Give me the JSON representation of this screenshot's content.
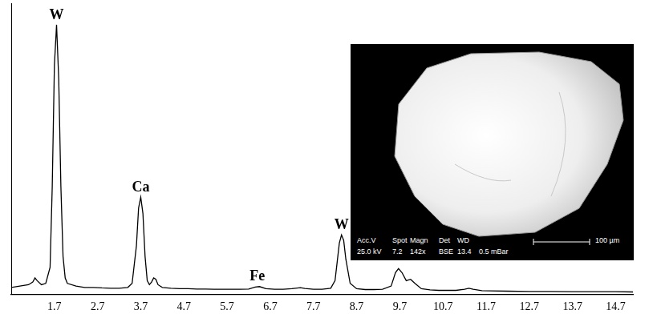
{
  "chart_data": {
    "type": "line",
    "x": [
      0.7,
      0.9,
      1.1,
      1.2,
      1.25,
      1.3,
      1.4,
      1.5,
      1.6,
      1.65,
      1.7,
      1.75,
      1.8,
      1.85,
      1.9,
      1.95,
      2.0,
      2.2,
      2.4,
      2.6,
      2.8,
      3.0,
      3.2,
      3.4,
      3.5,
      3.6,
      3.65,
      3.7,
      3.75,
      3.8,
      3.85,
      3.9,
      3.95,
      4.0,
      4.05,
      4.1,
      4.2,
      4.4,
      4.6,
      4.8,
      5.0,
      5.2,
      5.4,
      5.6,
      5.8,
      6.0,
      6.2,
      6.35,
      6.45,
      6.6,
      6.8,
      7.0,
      7.2,
      7.4,
      7.5,
      7.7,
      7.9,
      8.1,
      8.2,
      8.25,
      8.3,
      8.35,
      8.4,
      8.45,
      8.55,
      8.7,
      8.9,
      9.1,
      9.3,
      9.5,
      9.6,
      9.67,
      9.75,
      9.85,
      9.95,
      10.05,
      10.2,
      10.4,
      10.6,
      10.8,
      11.0,
      11.2,
      11.3,
      11.4,
      11.6,
      11.8,
      12.2,
      12.7,
      13.2,
      13.7,
      14.2,
      14.7,
      15.1
    ],
    "values": [
      2.5,
      3,
      3.5,
      4.5,
      6,
      5,
      3.5,
      4,
      10,
      40,
      85,
      100,
      80,
      40,
      14,
      6,
      4,
      3,
      2.5,
      2.5,
      2.3,
      2.2,
      2.2,
      2.5,
      4,
      18,
      32,
      36,
      30,
      14,
      5,
      3.5,
      4.5,
      6,
      5.5,
      3.5,
      2.5,
      2.2,
      2.0,
      2.0,
      1.9,
      1.9,
      1.8,
      1.8,
      1.8,
      1.8,
      1.9,
      2.6,
      2.8,
      2.0,
      1.8,
      1.8,
      2.0,
      2.4,
      2.1,
      1.8,
      1.8,
      2.2,
      5,
      12,
      19,
      22,
      20,
      13,
      4,
      2,
      1.7,
      1.7,
      1.8,
      3,
      8,
      9.5,
      8,
      5,
      5.5,
      4,
      2,
      1.6,
      1.4,
      1.4,
      1.4,
      1.8,
      2.2,
      1.8,
      1.3,
      1.2,
      1.1,
      1.0,
      1.0,
      0.9,
      0.9,
      0.9,
      0.8
    ],
    "color": "#000000",
    "xlim": [
      0.7,
      15.1
    ],
    "xticks": [
      1.7,
      2.7,
      3.7,
      4.7,
      5.7,
      6.7,
      7.7,
      8.7,
      9.7,
      10.7,
      11.7,
      12.7,
      13.7,
      14.7
    ],
    "ylim": [
      0,
      108
    ],
    "grid": false,
    "tick_labels": "x",
    "annotations": [
      {
        "text": "W",
        "x": 1.75,
        "y": 100
      },
      {
        "text": "Ca",
        "x": 3.7,
        "y": 36
      },
      {
        "text": "Fe",
        "x": 6.4,
        "y": 2.8
      },
      {
        "text": "W",
        "x": 8.35,
        "y": 22
      }
    ]
  },
  "inset": {
    "labels": [
      "Acc.V",
      "Spot",
      "Magn",
      "Det",
      "WD"
    ],
    "values": [
      "25.0 kV",
      "7.2",
      "142x",
      "BSE",
      "13.4",
      "0.5 mBar"
    ],
    "scale_bar": "100 µm"
  }
}
